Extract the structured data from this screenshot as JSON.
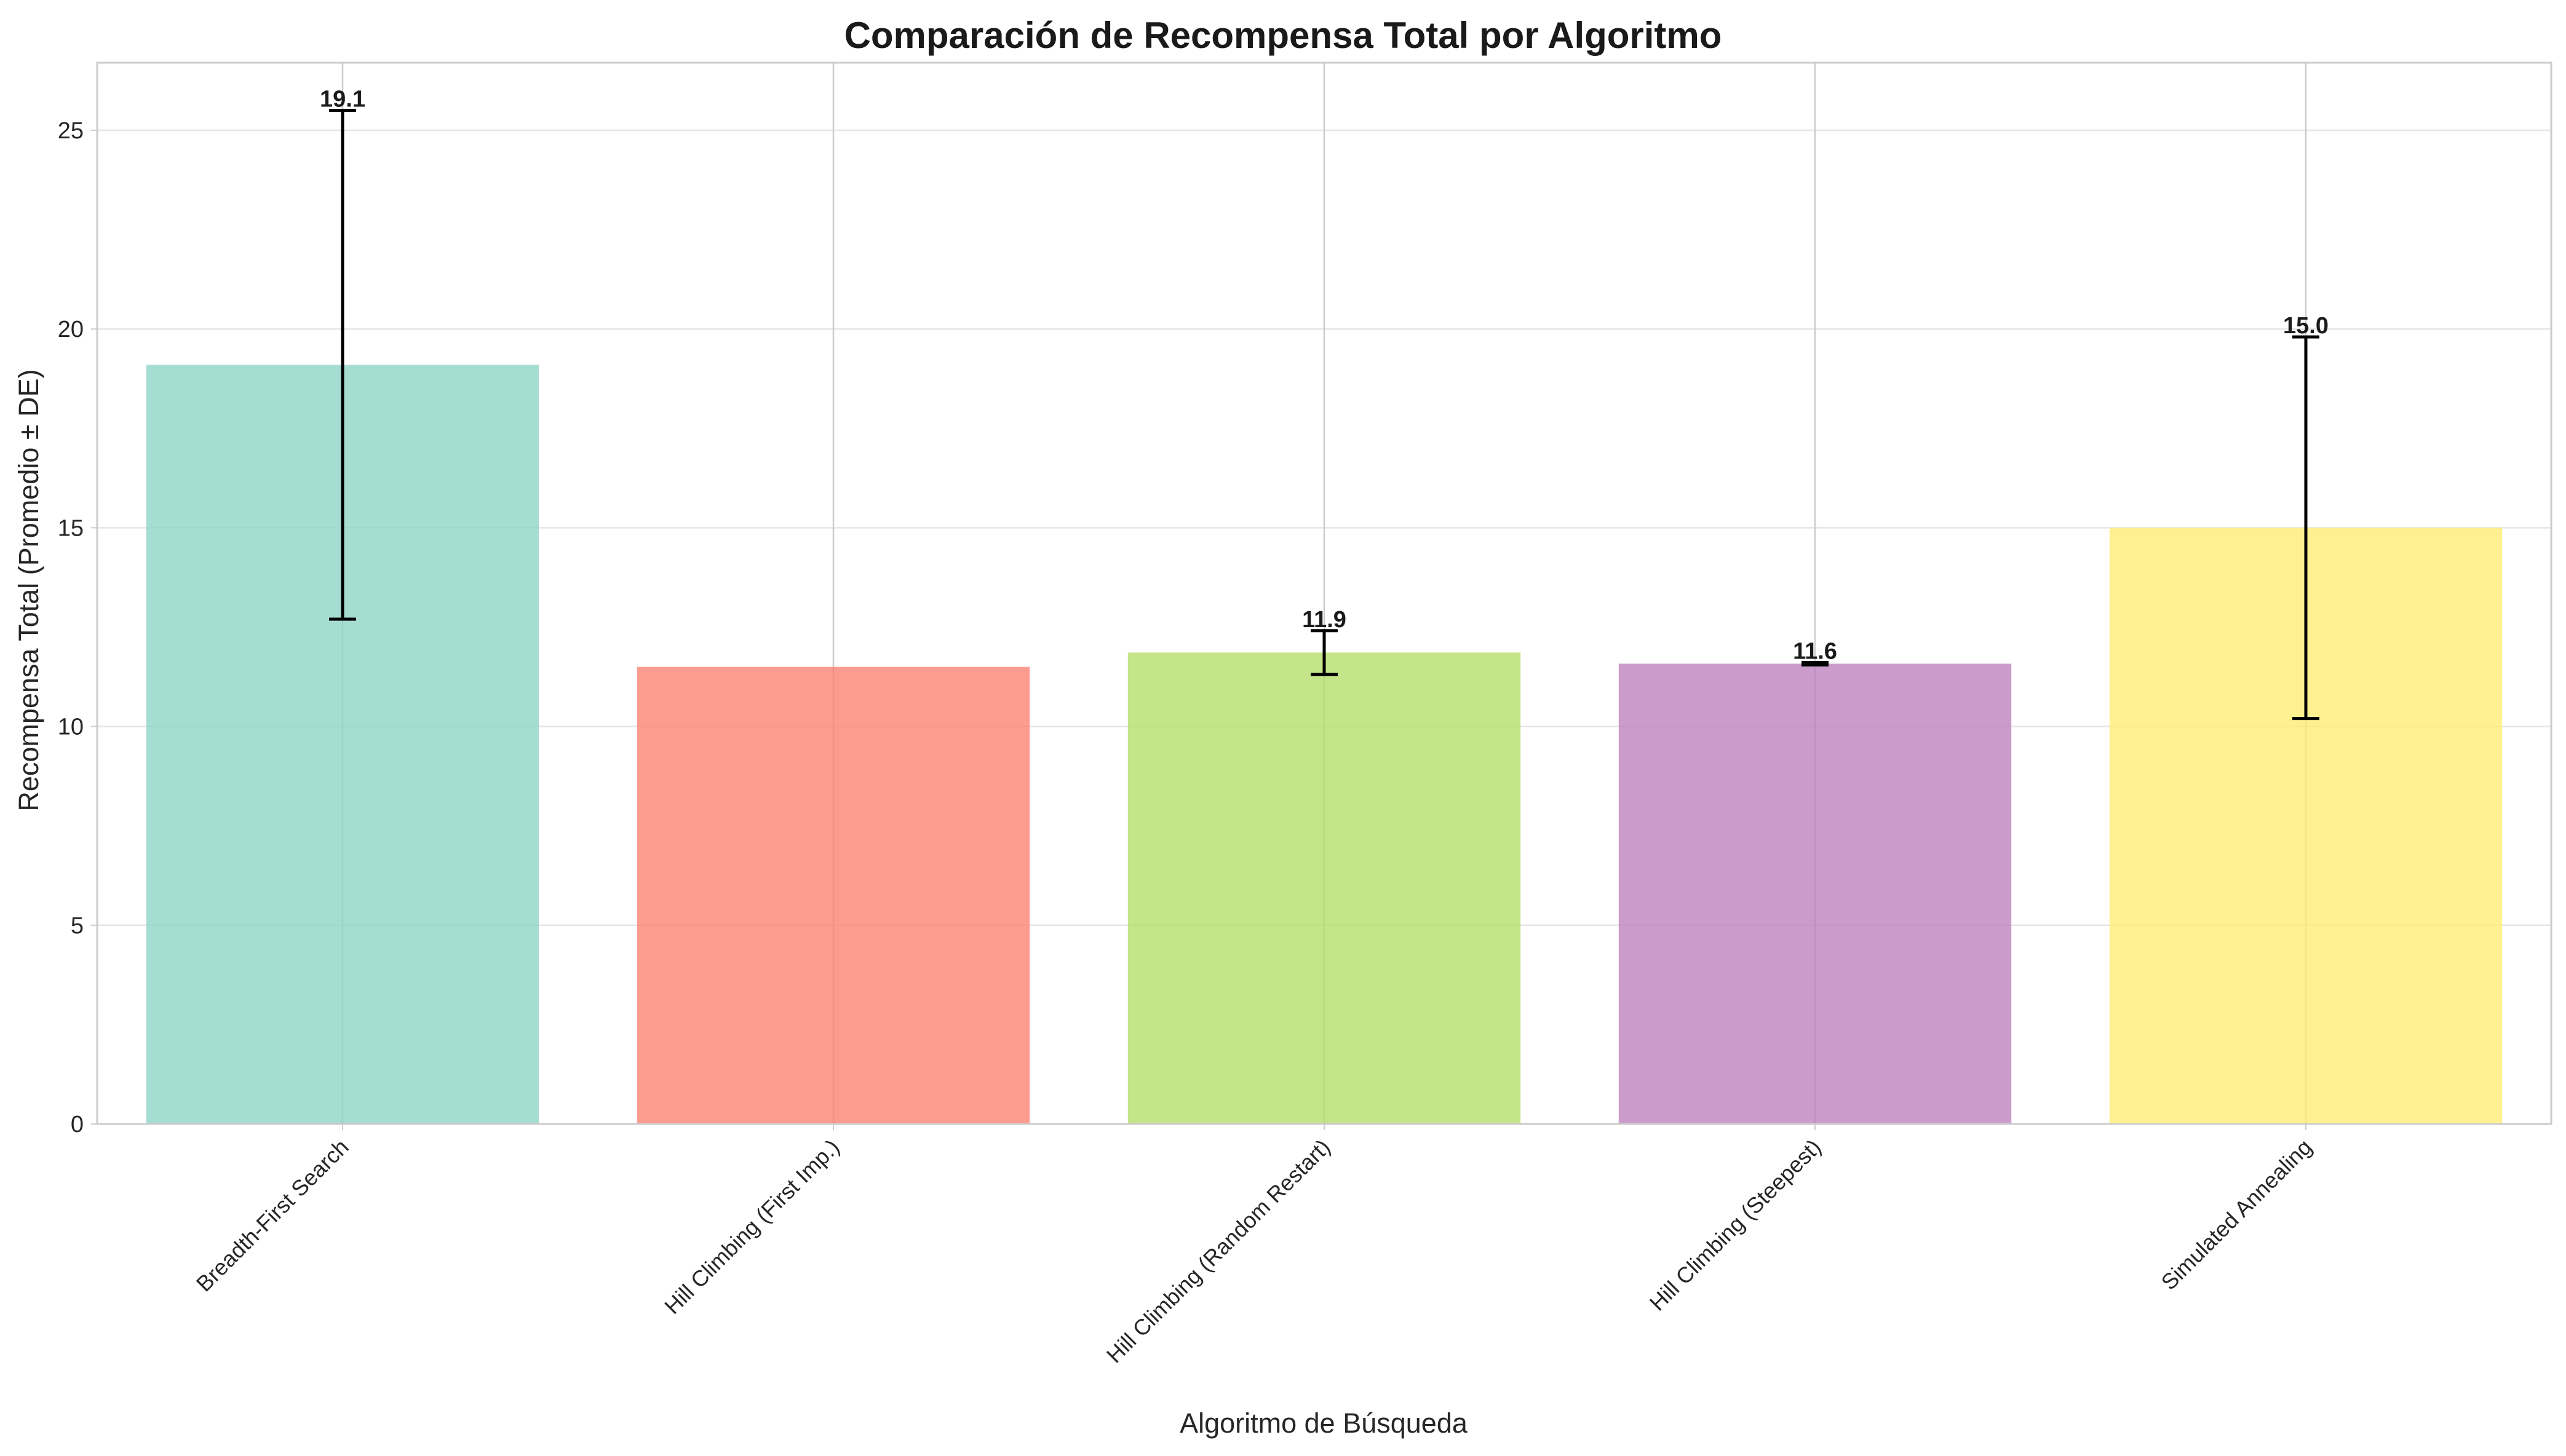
{
  "chart_data": {
    "type": "bar",
    "title": "Comparación de Recompensa Total por Algoritmo",
    "xlabel": "Algoritmo de Búsqueda",
    "ylabel": "Recompensa Total (Promedio ± DE)",
    "categories": [
      "Breadth-First Search",
      "Hill Climbing (First Imp.)",
      "Hill Climbing (Random Restart)",
      "Hill Climbing (Steepest)",
      "Simulated Annealing"
    ],
    "values": [
      19.1,
      11.5,
      11.86,
      11.58,
      15.0
    ],
    "errors": [
      6.4,
      null,
      0.55,
      0.03,
      4.8
    ],
    "data_labels": [
      "19.1",
      "",
      "11.9",
      "11.6",
      "15.0"
    ],
    "colors": [
      "#8dd3c7",
      "#fb8072",
      "#b3de69",
      "#bc80bd",
      "#ffed6f"
    ],
    "ylim": [
      0,
      26.7
    ],
    "yticks": [
      0,
      5,
      10,
      15,
      20,
      25
    ],
    "grid": true,
    "legend": "none"
  }
}
